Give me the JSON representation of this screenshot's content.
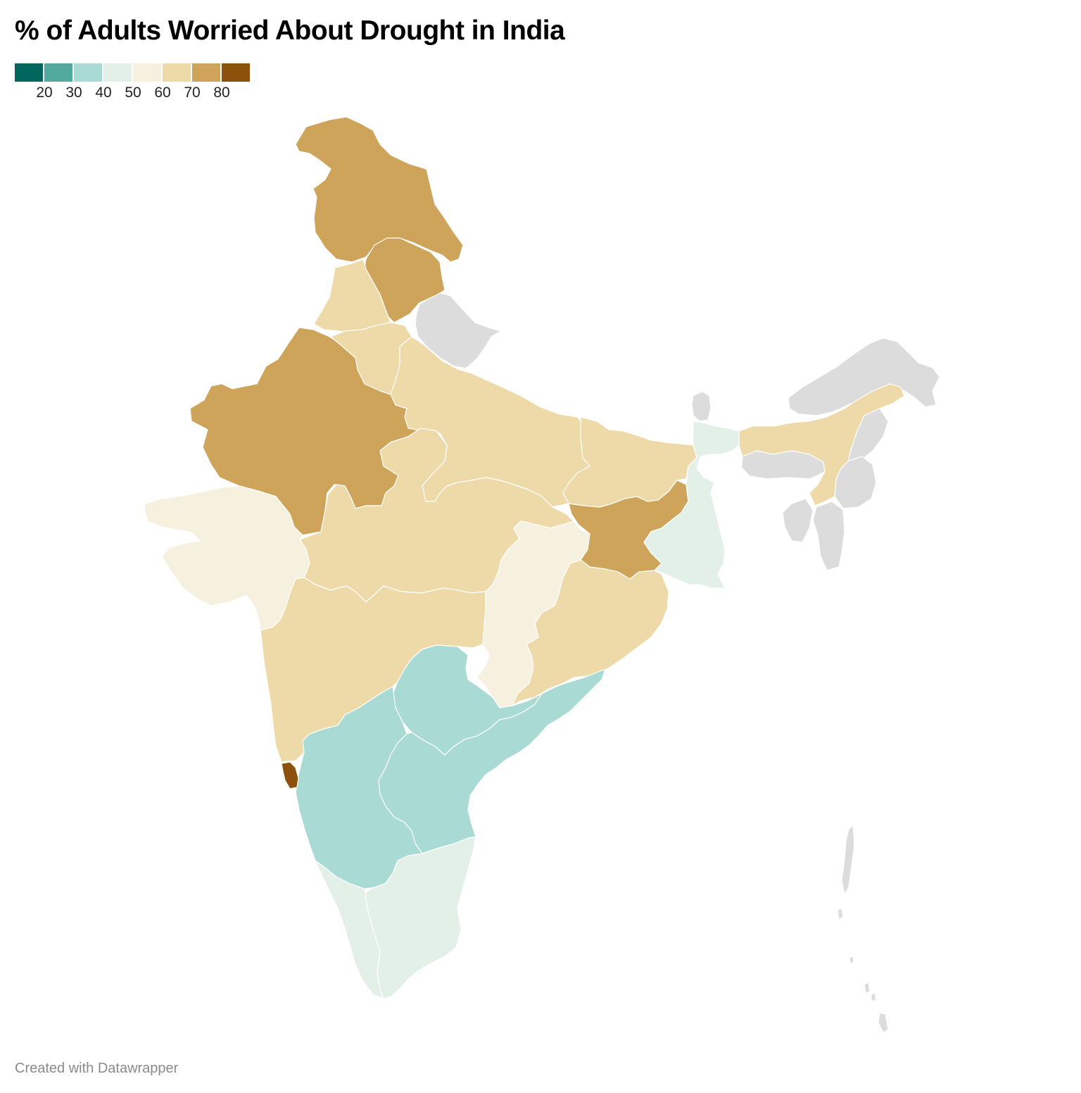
{
  "title": "% of Adults Worried About Drought in India",
  "legend": {
    "colors": [
      "#01665e",
      "#52aa9f",
      "#a9dad4",
      "#e2f0e8",
      "#f6f1de",
      "#eedaa9",
      "#cda45a",
      "#8c510a"
    ],
    "ticks": [
      "20",
      "30",
      "40",
      "50",
      "60",
      "70",
      "80"
    ]
  },
  "colors": {
    "no_data": "#dcdcdc",
    "border": "#ffffff"
  },
  "footer": {
    "credit": "Created with Datawrapper"
  }
}
